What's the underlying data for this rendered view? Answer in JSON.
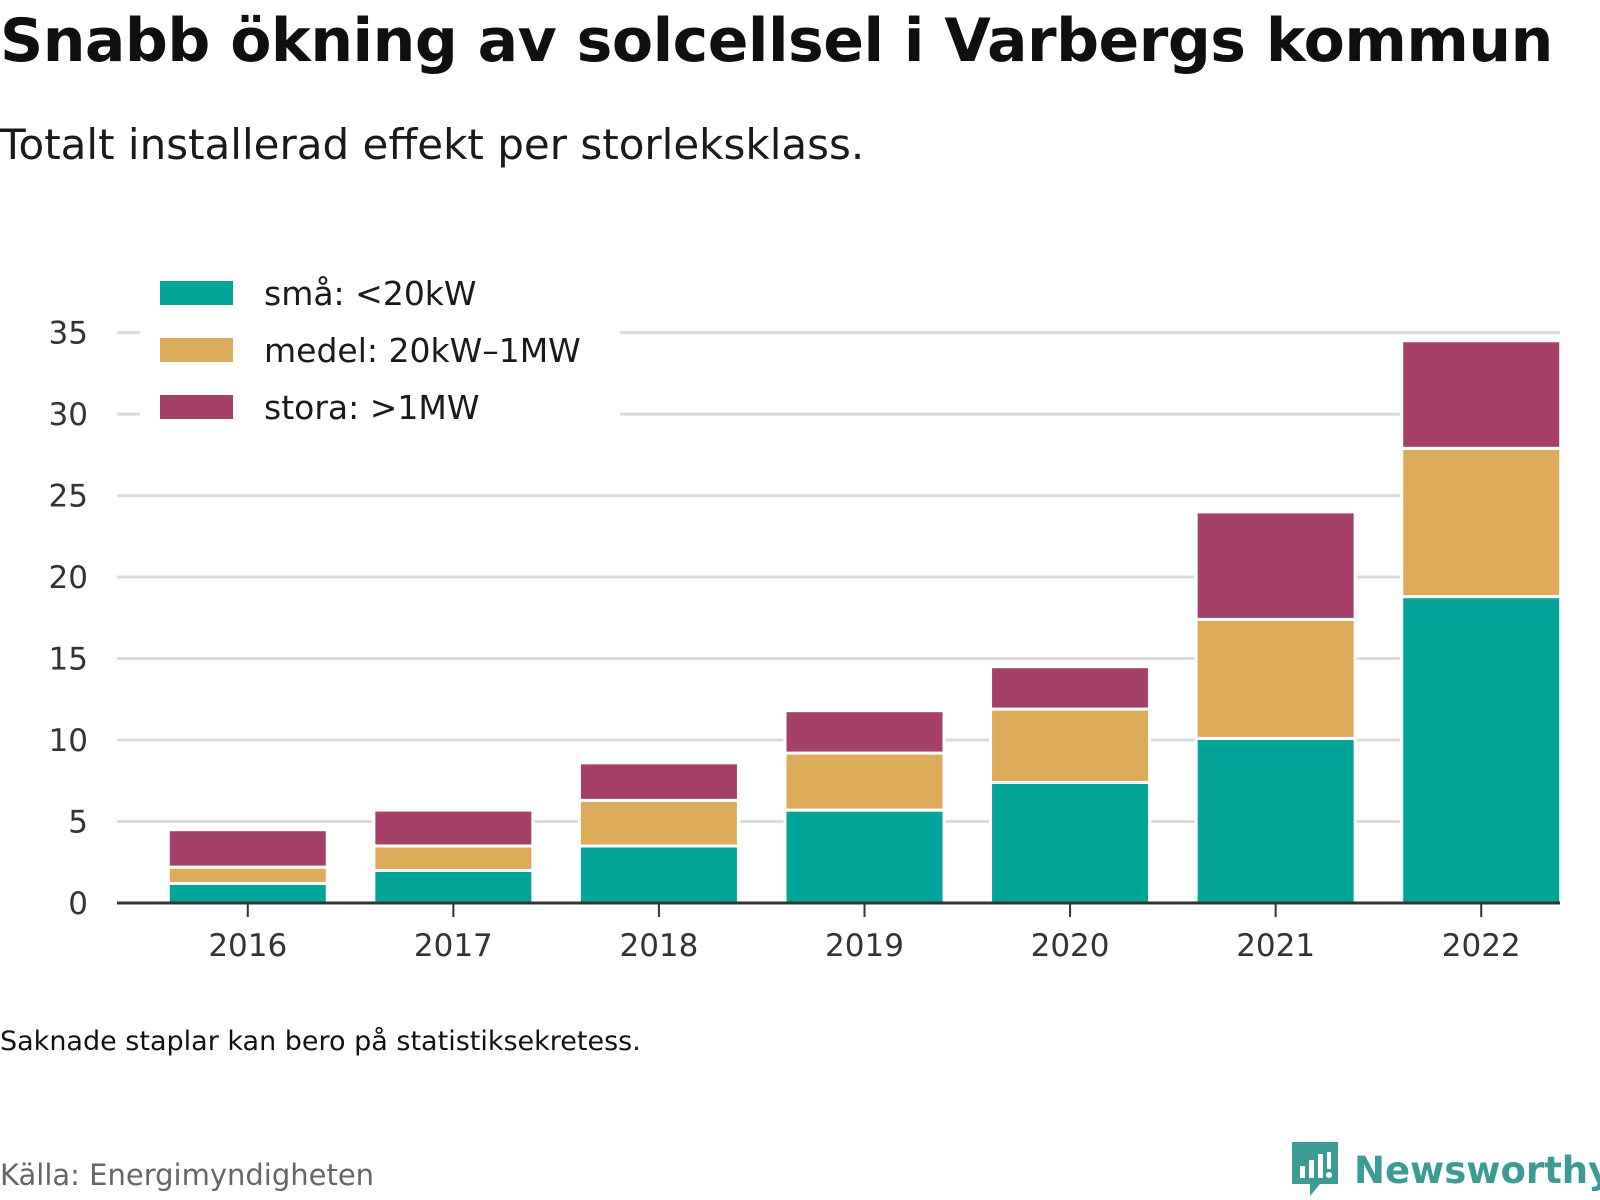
{
  "title": "Snabb ökning av solcellsel i Varbergs kommun",
  "subtitle": "Totalt installerad effekt per storleksklass.",
  "note": "Saknade staplar kan bero på statistiksekretess.",
  "source": "Källa: Energimyndigheten",
  "brand": "Newsworthy",
  "brand_color": "#3c9c95",
  "chart_data": {
    "type": "bar",
    "stacked": true,
    "categories": [
      "2016",
      "2017",
      "2018",
      "2019",
      "2020",
      "2021",
      "2022"
    ],
    "series": [
      {
        "name": "små: <20kW",
        "color": "#02a49a",
        "values": [
          1.2,
          2.0,
          3.5,
          5.7,
          7.4,
          10.1,
          18.8
        ]
      },
      {
        "name": "medel: 20kW–1MW",
        "color": "#dcac5b",
        "values": [
          1.0,
          1.5,
          2.8,
          3.5,
          4.5,
          7.3,
          9.1
        ]
      },
      {
        "name": "stora: >1MW",
        "color": "#a54168",
        "values": [
          2.3,
          2.2,
          2.3,
          2.6,
          2.6,
          6.6,
          6.6
        ]
      }
    ],
    "yticks": [
      0,
      5,
      10,
      15,
      20,
      25,
      30,
      35
    ],
    "ylim": [
      0,
      37
    ],
    "grid": true,
    "legend": "top-left"
  }
}
